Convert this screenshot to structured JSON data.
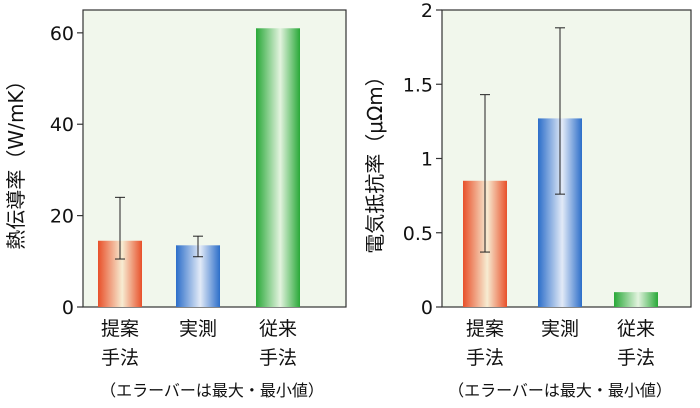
{
  "chart_data": [
    {
      "type": "bar",
      "ylabel": "熱伝導率（W/mK）",
      "ylim": [
        0,
        65
      ],
      "yticks": [
        "0",
        "20",
        "40",
        "60"
      ],
      "categories": [
        {
          "line1": "提案",
          "line2": "手法"
        },
        {
          "line1": "実測",
          "line2": ""
        },
        {
          "line1": "従来",
          "line2": "手法"
        }
      ],
      "values": [
        14.5,
        13.5,
        61
      ],
      "error_min": [
        10.5,
        11,
        null
      ],
      "error_max": [
        24,
        15.5,
        null
      ],
      "colors": [
        "#e8502a",
        "#2c6ec9",
        "#29a838"
      ],
      "grid": false,
      "note": "（エラーバーは最大・最小値）"
    },
    {
      "type": "bar",
      "ylabel": "電気抵抗率（μΩm）",
      "ylim": [
        0,
        2
      ],
      "yticks": [
        "0",
        "0.5",
        "1",
        "1.5",
        "2"
      ],
      "categories": [
        {
          "line1": "提案",
          "line2": "手法"
        },
        {
          "line1": "実測",
          "line2": ""
        },
        {
          "line1": "従来",
          "line2": "手法"
        }
      ],
      "values": [
        0.85,
        1.27,
        0.1
      ],
      "error_min": [
        0.37,
        0.76,
        null
      ],
      "error_max": [
        1.43,
        1.88,
        null
      ],
      "colors": [
        "#e8502a",
        "#2c6ec9",
        "#29a838"
      ],
      "grid": false,
      "note": "（エラーバーは最大・最小値）"
    }
  ]
}
